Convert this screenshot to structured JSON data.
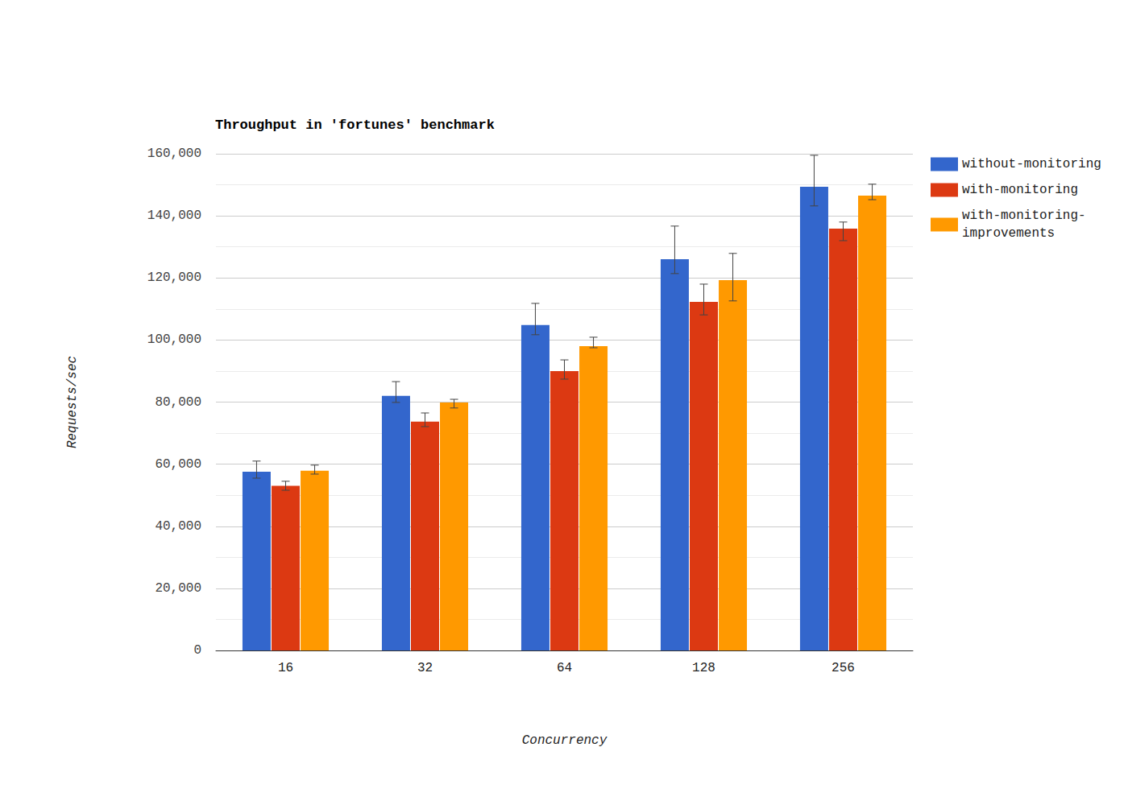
{
  "chart_data": {
    "type": "bar",
    "title": "Throughput in 'fortunes' benchmark",
    "x_label": "Concurrency",
    "y_label": "Requests/sec",
    "categories": [
      "16",
      "32",
      "64",
      "128",
      "256"
    ],
    "series": [
      {
        "name": "without-monitoring",
        "color": "#3366cc",
        "values": [
          57600,
          82000,
          104800,
          126000,
          149400
        ],
        "error_low": [
          55500,
          79900,
          101700,
          121400,
          143200
        ],
        "error_high": [
          61000,
          86600,
          111800,
          136700,
          159500
        ]
      },
      {
        "name": "with-monitoring",
        "color": "#dc3912",
        "values": [
          53000,
          73700,
          90000,
          112300,
          135900
        ],
        "error_low": [
          51600,
          72100,
          87400,
          108100,
          132000
        ],
        "error_high": [
          54500,
          76500,
          93600,
          118000,
          138000
        ]
      },
      {
        "name": "with-monitoring-improvements",
        "color": "#ff9900",
        "values": [
          57900,
          79900,
          98000,
          119300,
          146500
        ],
        "error_low": [
          56800,
          78100,
          97500,
          112600,
          145200
        ],
        "error_high": [
          59700,
          80900,
          100900,
          127900,
          150200
        ]
      }
    ],
    "ylim": [
      0,
      160000
    ],
    "yticks": [
      0,
      {
        "value": 20000,
        "label": "20,000"
      },
      {
        "value": 40000,
        "label": "40,000"
      },
      {
        "value": 60000,
        "label": "60,000"
      },
      {
        "value": 80000,
        "label": "80,000"
      },
      {
        "value": 100000,
        "label": "100,000"
      },
      {
        "value": 120000,
        "label": "120,000"
      },
      {
        "value": 140000,
        "label": "140,000"
      },
      {
        "value": 160000,
        "label": "160,000"
      }
    ],
    "grid": true,
    "legend": "right"
  }
}
